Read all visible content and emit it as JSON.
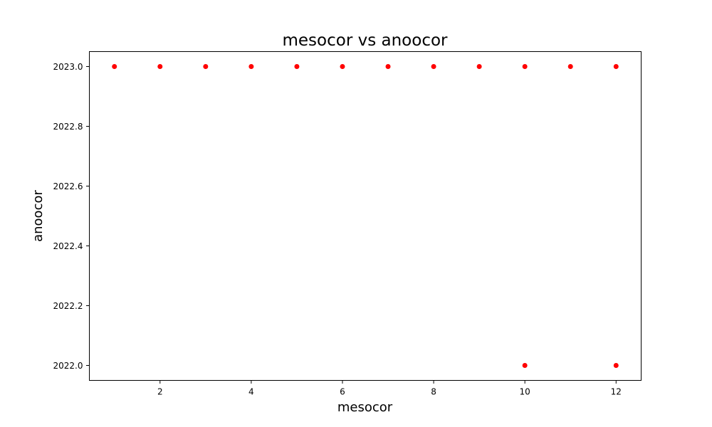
{
  "chart_data": {
    "type": "scatter",
    "title": "mesocor vs anoocor",
    "xlabel": "mesocor",
    "ylabel": "anoocor",
    "xlim": [
      0.45,
      12.55
    ],
    "ylim": [
      2021.95,
      2023.05
    ],
    "xticks": [
      {
        "value": 2,
        "label": "2"
      },
      {
        "value": 4,
        "label": "4"
      },
      {
        "value": 6,
        "label": "6"
      },
      {
        "value": 8,
        "label": "8"
      },
      {
        "value": 10,
        "label": "10"
      },
      {
        "value": 12,
        "label": "12"
      }
    ],
    "yticks": [
      {
        "value": 2022.0,
        "label": "2022.0"
      },
      {
        "value": 2022.2,
        "label": "2022.2"
      },
      {
        "value": 2022.4,
        "label": "2022.4"
      },
      {
        "value": 2022.6,
        "label": "2022.6"
      },
      {
        "value": 2022.8,
        "label": "2022.8"
      },
      {
        "value": 2023.0,
        "label": "2023.0"
      }
    ],
    "grid": false,
    "legend": "none",
    "marker_color": "#ff0000",
    "points": [
      {
        "x": 1,
        "y": 2023.0
      },
      {
        "x": 2,
        "y": 2023.0
      },
      {
        "x": 3,
        "y": 2023.0
      },
      {
        "x": 4,
        "y": 2023.0
      },
      {
        "x": 5,
        "y": 2023.0
      },
      {
        "x": 6,
        "y": 2023.0
      },
      {
        "x": 7,
        "y": 2023.0
      },
      {
        "x": 8,
        "y": 2023.0
      },
      {
        "x": 9,
        "y": 2023.0
      },
      {
        "x": 10,
        "y": 2023.0
      },
      {
        "x": 11,
        "y": 2023.0
      },
      {
        "x": 12,
        "y": 2023.0
      },
      {
        "x": 10,
        "y": 2022.0
      },
      {
        "x": 12,
        "y": 2022.0
      }
    ]
  }
}
